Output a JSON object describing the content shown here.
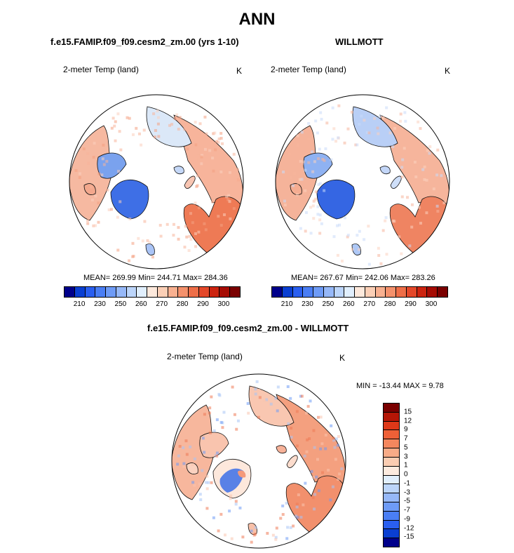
{
  "title": "ANN",
  "panels": [
    {
      "title": "f.e15.FAMIP.f09_f09.cesm2_zm.00 (yrs 1-10)",
      "variable": "2-meter Temp (land)",
      "units": "K",
      "stats": "MEAN= 269.99  Min= 244.71  Max= 284.36"
    },
    {
      "title": "WILLMOTT",
      "variable": "2-meter Temp (land)",
      "units": "K",
      "stats": "MEAN= 267.67  Min= 242.06  Max= 283.26"
    },
    {
      "title": "f.e15.FAMIP.f09_f09.cesm2_zm.00 - WILLMOTT",
      "variable": "2-meter Temp (land)",
      "units": "K",
      "stats": "MIN = -13.44 MAX =   9.78"
    }
  ],
  "chart_data": [
    {
      "type": "heatmap",
      "projection": "north-polar-stereographic",
      "title": "f.e15.FAMIP.f09_f09.cesm2_zm.00 (yrs 1-10)",
      "variable": "2-meter Temp (land)",
      "units": "K",
      "mean": 269.99,
      "min": 244.71,
      "max": 284.36,
      "colorbar_tick_labels": [
        "210",
        "230",
        "250",
        "260",
        "270",
        "280",
        "290",
        "300"
      ],
      "colorbar_colors": [
        "#00008b",
        "#0a3fd2",
        "#2a5ff0",
        "#4a7ef4",
        "#6e9bf6",
        "#96b8f8",
        "#bcd5fa",
        "#e1effd",
        "#fde9dc",
        "#fbcfb6",
        "#f8b090",
        "#f4916c",
        "#ee6e48",
        "#e4482a",
        "#cc2410",
        "#a60c04",
        "#7a0000"
      ]
    },
    {
      "type": "heatmap",
      "projection": "north-polar-stereographic",
      "title": "WILLMOTT",
      "variable": "2-meter Temp (land)",
      "units": "K",
      "mean": 267.67,
      "min": 242.06,
      "max": 283.26,
      "colorbar_tick_labels": [
        "210",
        "230",
        "250",
        "260",
        "270",
        "280",
        "290",
        "300"
      ],
      "colorbar_colors": [
        "#00008b",
        "#0a3fd2",
        "#2a5ff0",
        "#4a7ef4",
        "#6e9bf6",
        "#96b8f8",
        "#bcd5fa",
        "#e1effd",
        "#fde9dc",
        "#fbcfb6",
        "#f8b090",
        "#f4916c",
        "#ee6e48",
        "#e4482a",
        "#cc2410",
        "#a60c04",
        "#7a0000"
      ]
    },
    {
      "type": "heatmap",
      "projection": "north-polar-stereographic",
      "title": "f.e15.FAMIP.f09_f09.cesm2_zm.00 - WILLMOTT",
      "variable": "2-meter Temp (land)",
      "units": "K",
      "min": -13.44,
      "max": 9.78,
      "colorbar_tick_labels": [
        "15",
        "12",
        "9",
        "7",
        "5",
        "3",
        "1",
        "0",
        "-1",
        "-3",
        "-5",
        "-7",
        "-9",
        "-12",
        "-15"
      ],
      "colorbar_colors": [
        "#7a0000",
        "#b51606",
        "#de3818",
        "#ee6037",
        "#f4875e",
        "#f8ab87",
        "#fbcdb2",
        "#fdebdf",
        "#e1effd",
        "#bcd5fa",
        "#96b8f8",
        "#6e9bf6",
        "#4a7ef4",
        "#2a5ff0",
        "#0a3fd2",
        "#00008b"
      ]
    }
  ]
}
